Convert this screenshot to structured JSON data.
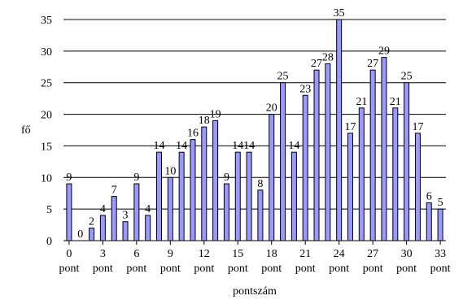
{
  "chart_data": {
    "type": "bar",
    "xlabel": "pontszám",
    "ylabel": "fő",
    "ylim": [
      0,
      35
    ],
    "yticks": [
      0,
      5,
      10,
      15,
      20,
      25,
      30,
      35
    ],
    "grid": true,
    "categories": [
      "0",
      "1",
      "2",
      "3",
      "4",
      "5",
      "6",
      "7",
      "8",
      "9",
      "10",
      "11",
      "12",
      "13",
      "14",
      "15",
      "16",
      "17",
      "18",
      "19",
      "20",
      "21",
      "22",
      "23",
      "24",
      "25",
      "26",
      "27",
      "28",
      "29",
      "30",
      "31",
      "32",
      "33"
    ],
    "values": [
      9,
      0,
      2,
      4,
      7,
      3,
      9,
      4,
      14,
      10,
      14,
      16,
      18,
      19,
      9,
      14,
      14,
      8,
      20,
      25,
      14,
      23,
      27,
      28,
      35,
      17,
      21,
      27,
      29,
      21,
      25,
      17,
      6,
      5
    ],
    "x_tick_labels": [
      {
        "index": 0,
        "line1": "0",
        "line2": "pont"
      },
      {
        "index": 3,
        "line1": "3",
        "line2": "pont"
      },
      {
        "index": 6,
        "line1": "6",
        "line2": "pont"
      },
      {
        "index": 9,
        "line1": "9",
        "line2": "pont"
      },
      {
        "index": 12,
        "line1": "12",
        "line2": "pont"
      },
      {
        "index": 15,
        "line1": "15",
        "line2": "pont"
      },
      {
        "index": 18,
        "line1": "18",
        "line2": "pont"
      },
      {
        "index": 21,
        "line1": "21",
        "line2": "pont"
      },
      {
        "index": 24,
        "line1": "24",
        "line2": "pont"
      },
      {
        "index": 27,
        "line1": "27",
        "line2": "pont"
      },
      {
        "index": 30,
        "line1": "30",
        "line2": "pont"
      },
      {
        "index": 33,
        "line1": "33",
        "line2": "pont"
      }
    ],
    "colors": {
      "bar_fill": "#9999ff",
      "bar_stroke": "#000000",
      "grid": "#000000"
    }
  }
}
